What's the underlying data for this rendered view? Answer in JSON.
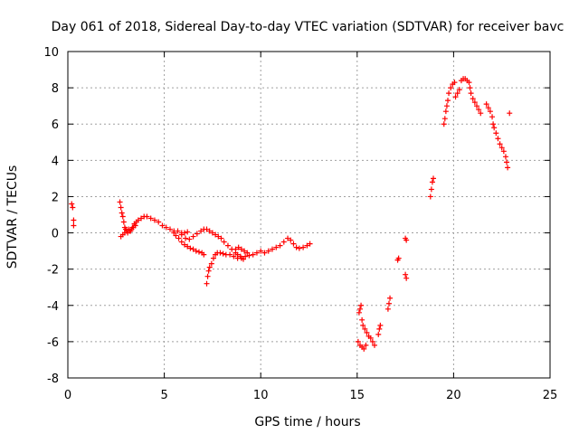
{
  "chart_data": {
    "type": "scatter",
    "title": "Day 061 of 2018, Sidereal Day-to-day VTEC variation (SDTVAR) for receiver bavc",
    "xlabel": "GPS time / hours",
    "ylabel": "SDTVAR / TECUs",
    "xlim": [
      0,
      25
    ],
    "ylim": [
      -8,
      10
    ],
    "xticks": [
      0,
      5,
      10,
      15,
      20,
      25
    ],
    "yticks": [
      -8,
      -6,
      -4,
      -2,
      0,
      2,
      4,
      6,
      8,
      10
    ],
    "grid": true,
    "marker": "+",
    "color": "#ff0000",
    "series": [
      {
        "name": "SDTVAR",
        "points": [
          [
            0.2,
            1.6
          ],
          [
            0.25,
            1.4
          ],
          [
            0.3,
            0.7
          ],
          [
            0.3,
            0.4
          ],
          [
            2.7,
            1.7
          ],
          [
            2.75,
            1.4
          ],
          [
            2.8,
            1.1
          ],
          [
            2.85,
            0.9
          ],
          [
            2.9,
            0.6
          ],
          [
            2.95,
            0.3
          ],
          [
            3.0,
            0.2
          ],
          [
            3.05,
            0.1
          ],
          [
            3.1,
            0.0
          ],
          [
            3.2,
            0.1
          ],
          [
            3.3,
            0.2
          ],
          [
            3.4,
            0.3
          ],
          [
            3.5,
            0.4
          ],
          [
            2.75,
            -0.2
          ],
          [
            2.85,
            -0.1
          ],
          [
            2.95,
            0.0
          ],
          [
            3.05,
            0.1
          ],
          [
            3.15,
            0.2
          ],
          [
            3.25,
            0.1
          ],
          [
            3.35,
            0.3
          ],
          [
            3.45,
            0.5
          ],
          [
            3.55,
            0.6
          ],
          [
            3.65,
            0.7
          ],
          [
            3.8,
            0.8
          ],
          [
            3.95,
            0.9
          ],
          [
            4.1,
            0.9
          ],
          [
            4.3,
            0.8
          ],
          [
            4.5,
            0.7
          ],
          [
            4.7,
            0.6
          ],
          [
            4.9,
            0.4
          ],
          [
            5.1,
            0.3
          ],
          [
            5.3,
            0.2
          ],
          [
            5.5,
            0.1
          ],
          [
            5.7,
            0.1
          ],
          [
            5.9,
            0.0
          ],
          [
            6.05,
            0.0
          ],
          [
            6.2,
            0.05
          ],
          [
            5.5,
            0.0
          ],
          [
            5.6,
            -0.15
          ],
          [
            5.75,
            -0.3
          ],
          [
            5.9,
            -0.5
          ],
          [
            6.05,
            -0.65
          ],
          [
            6.2,
            -0.75
          ],
          [
            6.35,
            -0.85
          ],
          [
            6.5,
            -0.9
          ],
          [
            6.65,
            -1.0
          ],
          [
            6.8,
            -1.05
          ],
          [
            6.95,
            -1.1
          ],
          [
            7.05,
            -1.2
          ],
          [
            5.9,
            -0.1
          ],
          [
            6.1,
            -0.3
          ],
          [
            6.3,
            -0.35
          ],
          [
            6.5,
            -0.2
          ],
          [
            6.7,
            -0.05
          ],
          [
            6.9,
            0.1
          ],
          [
            7.05,
            0.2
          ],
          [
            7.2,
            0.2
          ],
          [
            7.35,
            0.1
          ],
          [
            7.5,
            0.0
          ],
          [
            7.65,
            -0.1
          ],
          [
            7.8,
            -0.2
          ],
          [
            7.95,
            -0.3
          ],
          [
            8.1,
            -0.5
          ],
          [
            8.3,
            -0.7
          ],
          [
            8.5,
            -0.9
          ],
          [
            8.7,
            -1.1
          ],
          [
            7.2,
            -2.8
          ],
          [
            7.25,
            -2.4
          ],
          [
            7.3,
            -2.1
          ],
          [
            7.35,
            -1.9
          ],
          [
            7.45,
            -1.7
          ],
          [
            7.55,
            -1.4
          ],
          [
            7.65,
            -1.2
          ],
          [
            7.75,
            -1.1
          ],
          [
            7.9,
            -1.1
          ],
          [
            8.05,
            -1.15
          ],
          [
            8.2,
            -1.2
          ],
          [
            8.4,
            -1.2
          ],
          [
            8.6,
            -1.3
          ],
          [
            8.8,
            -1.4
          ],
          [
            9.0,
            -1.4
          ],
          [
            9.2,
            -1.3
          ],
          [
            9.4,
            -1.25
          ],
          [
            9.6,
            -1.2
          ],
          [
            9.8,
            -1.1
          ],
          [
            10.0,
            -1.0
          ],
          [
            10.2,
            -1.1
          ],
          [
            10.4,
            -1.0
          ],
          [
            10.6,
            -0.9
          ],
          [
            10.8,
            -0.8
          ],
          [
            11.0,
            -0.7
          ],
          [
            11.2,
            -0.5
          ],
          [
            11.4,
            -0.3
          ],
          [
            11.55,
            -0.4
          ],
          [
            11.7,
            -0.6
          ],
          [
            11.85,
            -0.8
          ],
          [
            12.0,
            -0.85
          ],
          [
            12.2,
            -0.8
          ],
          [
            12.4,
            -0.7
          ],
          [
            12.55,
            -0.6
          ],
          [
            8.7,
            -0.9
          ],
          [
            8.85,
            -0.8
          ],
          [
            9.0,
            -0.9
          ],
          [
            9.15,
            -1.0
          ],
          [
            9.3,
            -1.1
          ],
          [
            8.8,
            -1.2
          ],
          [
            8.95,
            -1.3
          ],
          [
            9.1,
            -1.45
          ],
          [
            15.1,
            -4.4
          ],
          [
            15.15,
            -4.2
          ],
          [
            15.2,
            -4.0
          ],
          [
            15.25,
            -4.8
          ],
          [
            15.3,
            -5.1
          ],
          [
            15.4,
            -5.3
          ],
          [
            15.5,
            -5.5
          ],
          [
            15.6,
            -5.7
          ],
          [
            15.7,
            -5.8
          ],
          [
            15.8,
            -6.0
          ],
          [
            15.9,
            -6.2
          ],
          [
            15.05,
            -6.0
          ],
          [
            15.15,
            -6.2
          ],
          [
            15.25,
            -6.3
          ],
          [
            15.35,
            -6.4
          ],
          [
            15.45,
            -6.2
          ],
          [
            16.1,
            -5.6
          ],
          [
            16.15,
            -5.3
          ],
          [
            16.2,
            -5.1
          ],
          [
            16.6,
            -4.2
          ],
          [
            16.65,
            -3.9
          ],
          [
            16.7,
            -3.6
          ],
          [
            17.1,
            -1.5
          ],
          [
            17.15,
            -1.4
          ],
          [
            17.5,
            -2.3
          ],
          [
            17.55,
            -2.5
          ],
          [
            17.5,
            -0.3
          ],
          [
            17.55,
            -0.4
          ],
          [
            18.8,
            2.0
          ],
          [
            18.85,
            2.4
          ],
          [
            18.9,
            2.8
          ],
          [
            18.95,
            3.0
          ],
          [
            19.5,
            6.0
          ],
          [
            19.55,
            6.3
          ],
          [
            19.6,
            6.7
          ],
          [
            19.65,
            7.0
          ],
          [
            19.7,
            7.3
          ],
          [
            19.75,
            7.7
          ],
          [
            19.85,
            8.0
          ],
          [
            19.95,
            8.2
          ],
          [
            20.05,
            8.3
          ],
          [
            20.1,
            7.5
          ],
          [
            20.2,
            7.7
          ],
          [
            20.3,
            7.9
          ],
          [
            20.4,
            8.4
          ],
          [
            20.5,
            8.5
          ],
          [
            20.6,
            8.5
          ],
          [
            20.7,
            8.4
          ],
          [
            20.8,
            8.3
          ],
          [
            20.85,
            8.0
          ],
          [
            20.9,
            7.7
          ],
          [
            21.0,
            7.4
          ],
          [
            21.1,
            7.2
          ],
          [
            21.2,
            7.0
          ],
          [
            21.3,
            6.8
          ],
          [
            21.4,
            6.6
          ],
          [
            21.7,
            7.1
          ],
          [
            21.8,
            6.9
          ],
          [
            21.9,
            6.7
          ],
          [
            22.0,
            6.4
          ],
          [
            22.05,
            6.0
          ],
          [
            22.1,
            5.8
          ],
          [
            22.2,
            5.5
          ],
          [
            22.3,
            5.2
          ],
          [
            22.4,
            4.9
          ],
          [
            22.5,
            4.7
          ],
          [
            22.6,
            4.5
          ],
          [
            22.7,
            4.2
          ],
          [
            22.75,
            3.9
          ],
          [
            22.8,
            3.6
          ],
          [
            22.9,
            6.6
          ]
        ]
      }
    ]
  }
}
